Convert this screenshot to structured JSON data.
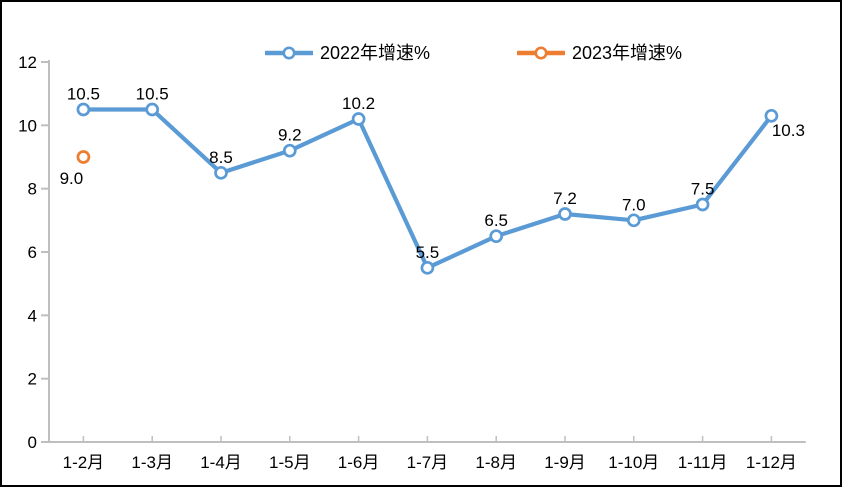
{
  "chart_data": {
    "type": "line",
    "title": "",
    "xlabel": "",
    "ylabel": "",
    "categories": [
      "1-2月",
      "1-3月",
      "1-4月",
      "1-5月",
      "1-6月",
      "1-7月",
      "1-8月",
      "1-9月",
      "1-10月",
      "1-11月",
      "1-12月"
    ],
    "series": [
      {
        "name": "2022年增速%",
        "color": "#5B9BD5",
        "values": [
          10.5,
          10.5,
          8.5,
          9.2,
          10.2,
          5.5,
          6.5,
          7.2,
          7.0,
          7.5,
          10.3
        ],
        "labels": [
          "10.5",
          "10.5",
          "8.5",
          "9.2",
          "10.2",
          "5.5",
          "6.5",
          "7.2",
          "7.0",
          "7.5",
          "10.3"
        ],
        "label_placements": [
          "above",
          "above",
          "above",
          "above",
          "above",
          "above",
          "above",
          "above",
          "above",
          "above",
          "below-right"
        ]
      },
      {
        "name": "2023年增速%",
        "color": "#ED7D31",
        "values": [
          9.0,
          null,
          null,
          null,
          null,
          null,
          null,
          null,
          null,
          null,
          null
        ],
        "labels": [
          "9.0",
          null,
          null,
          null,
          null,
          null,
          null,
          null,
          null,
          null,
          null
        ],
        "label_placements": [
          "below-left",
          null,
          null,
          null,
          null,
          null,
          null,
          null,
          null,
          null,
          null
        ]
      }
    ],
    "ylim": [
      0,
      12
    ],
    "yticks": [
      "0",
      "2",
      "4",
      "6",
      "8",
      "10",
      "12"
    ],
    "grid": false,
    "legend_position": "top",
    "axis_color": "#BFBFBF",
    "label_color": "#000000"
  }
}
